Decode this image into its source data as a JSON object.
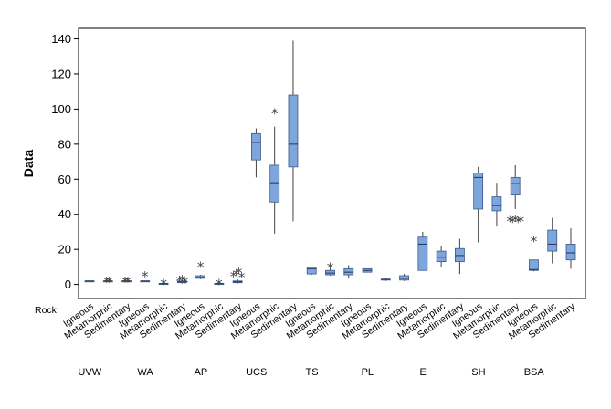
{
  "chart_data": {
    "type": "boxplot",
    "title": "",
    "ylabel": "Data",
    "row_label": "Rock",
    "ylim": [
      -8,
      146
    ],
    "yticks": [
      0,
      20,
      40,
      60,
      80,
      100,
      120,
      140
    ],
    "colors": {
      "box_fill": "#7ea6dc",
      "box_stroke": "#3a5a8a",
      "whisker": "#404040",
      "median": "#1f3358",
      "frame": "#000000"
    },
    "groups": [
      {
        "name": "UVW",
        "boxes": [
          {
            "category": "Igneous",
            "min": 2.0,
            "q1": 2.0,
            "median": 2.0,
            "q3": 2.0,
            "max": 2.0,
            "outliers": []
          },
          {
            "category": "Metamorphic",
            "min": 2.0,
            "q1": 2.0,
            "median": 2.0,
            "q3": 2.0,
            "max": 2.0,
            "outliers": [
              2.0,
              2.0
            ]
          },
          {
            "category": "Sedimentary",
            "min": 2.0,
            "q1": 2.0,
            "median": 2.0,
            "q3": 2.0,
            "max": 2.0,
            "outliers": [
              2.0,
              2.0
            ]
          }
        ]
      },
      {
        "name": "WA",
        "boxes": [
          {
            "category": "Igneous",
            "min": 2.0,
            "q1": 2.0,
            "median": 2.0,
            "q3": 2.0,
            "max": 2.0,
            "outliers": [
              5.0
            ]
          },
          {
            "category": "Metamorphic",
            "min": 0.5,
            "q1": 0.5,
            "median": 0.5,
            "q3": 0.5,
            "max": 0.5,
            "outliers": [
              0.5
            ]
          },
          {
            "category": "Sedimentary",
            "min": 0.5,
            "q1": 1.0,
            "median": 1.5,
            "q3": 2.0,
            "max": 2.5,
            "outliers": [
              2.5,
              3.0,
              1.5
            ]
          }
        ]
      },
      {
        "name": "AP",
        "boxes": [
          {
            "category": "Igneous",
            "min": 3.0,
            "q1": 3.5,
            "median": 4.0,
            "q3": 5.0,
            "max": 5.5,
            "outliers": [
              10.5
            ]
          },
          {
            "category": "Metamorphic",
            "min": 0.5,
            "q1": 0.5,
            "median": 0.5,
            "q3": 0.5,
            "max": 0.5,
            "outliers": [
              0.5
            ]
          },
          {
            "category": "Sedimentary",
            "min": 0.5,
            "q1": 1.0,
            "median": 1.5,
            "q3": 2.0,
            "max": 3.0,
            "outliers": [
              5.0,
              6.0,
              7.0,
              4.5
            ]
          }
        ]
      },
      {
        "name": "UCS",
        "boxes": [
          {
            "category": "Igneous",
            "min": 61,
            "q1": 71,
            "median": 81,
            "q3": 86,
            "max": 89,
            "outliers": []
          },
          {
            "category": "Metamorphic",
            "min": 29,
            "q1": 47,
            "median": 58,
            "q3": 68,
            "max": 90,
            "outliers": [
              98
            ]
          },
          {
            "category": "Sedimentary",
            "min": 36,
            "q1": 67,
            "median": 80,
            "q3": 108,
            "max": 139,
            "outliers": []
          }
        ]
      },
      {
        "name": "TS",
        "boxes": [
          {
            "category": "Igneous",
            "min": 5.5,
            "q1": 6.0,
            "median": 9.0,
            "q3": 10.0,
            "max": 10.0,
            "outliers": []
          },
          {
            "category": "Metamorphic",
            "min": 5.0,
            "q1": 5.5,
            "median": 6.5,
            "q3": 8.0,
            "max": 9.0,
            "outliers": [
              10.0
            ]
          },
          {
            "category": "Sedimentary",
            "min": 3.5,
            "q1": 5.5,
            "median": 7.0,
            "q3": 9.0,
            "max": 11.0,
            "outliers": []
          }
        ]
      },
      {
        "name": "PL",
        "boxes": [
          {
            "category": "Igneous",
            "min": 7.0,
            "q1": 7.0,
            "median": 8.0,
            "q3": 9.0,
            "max": 9.0,
            "outliers": []
          },
          {
            "category": "Metamorphic",
            "min": 2.0,
            "q1": 2.5,
            "median": 3.0,
            "q3": 3.0,
            "max": 3.5,
            "outliers": []
          },
          {
            "category": "Sedimentary",
            "min": 2.0,
            "q1": 2.5,
            "median": 3.5,
            "q3": 5.0,
            "max": 6.0,
            "outliers": []
          }
        ]
      },
      {
        "name": "E",
        "boxes": [
          {
            "category": "Igneous",
            "min": 8,
            "q1": 8,
            "median": 23,
            "q3": 27,
            "max": 30,
            "outliers": []
          },
          {
            "category": "Metamorphic",
            "min": 10,
            "q1": 13,
            "median": 15.5,
            "q3": 19,
            "max": 22,
            "outliers": []
          },
          {
            "category": "Sedimentary",
            "min": 6,
            "q1": 13,
            "median": 16.5,
            "q3": 20.5,
            "max": 26,
            "outliers": []
          }
        ]
      },
      {
        "name": "SH",
        "boxes": [
          {
            "category": "Igneous",
            "min": 24,
            "q1": 43,
            "median": 61,
            "q3": 63.5,
            "max": 67,
            "outliers": []
          },
          {
            "category": "Metamorphic",
            "min": 33,
            "q1": 42,
            "median": 45,
            "q3": 50,
            "max": 58,
            "outliers": []
          },
          {
            "category": "Sedimentary",
            "min": 43,
            "q1": 51,
            "median": 57.5,
            "q3": 61,
            "max": 68,
            "outliers": [
              36.5,
              36.0,
              37.0,
              36.0,
              36.5
            ]
          }
        ]
      },
      {
        "name": "BSA",
        "boxes": [
          {
            "category": "Igneous",
            "min": 7.5,
            "q1": 8.0,
            "median": 8.5,
            "q3": 14.0,
            "max": 14.0,
            "outliers": [
              25.0
            ]
          },
          {
            "category": "Metamorphic",
            "min": 12,
            "q1": 19,
            "median": 23,
            "q3": 31,
            "max": 38,
            "outliers": []
          },
          {
            "category": "Sedimentary",
            "min": 9,
            "q1": 14,
            "median": 18,
            "q3": 23,
            "max": 32,
            "outliers": []
          }
        ]
      }
    ]
  }
}
